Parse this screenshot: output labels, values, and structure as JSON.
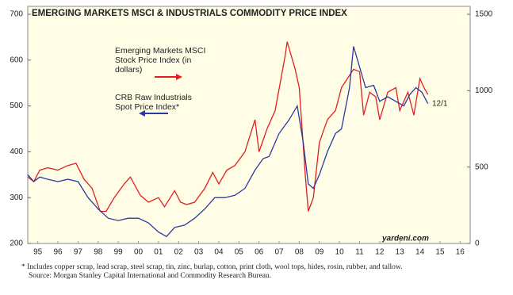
{
  "chart_data": {
    "type": "line",
    "title": "EMERGING MARKETS MSCI & INDUSTRIALS COMMODITY PRICE INDEX",
    "xlim": [
      1995,
      2017
    ],
    "xticks": [
      {
        "value": 1995.5,
        "label": "95"
      },
      {
        "value": 1996.5,
        "label": "96"
      },
      {
        "value": 1997.5,
        "label": "97"
      },
      {
        "value": 1998.5,
        "label": "98"
      },
      {
        "value": 1999.5,
        "label": "99"
      },
      {
        "value": 2000.5,
        "label": "00"
      },
      {
        "value": 2001.5,
        "label": "01"
      },
      {
        "value": 2002.5,
        "label": "02"
      },
      {
        "value": 2003.5,
        "label": "03"
      },
      {
        "value": 2004.5,
        "label": "04"
      },
      {
        "value": 2005.5,
        "label": "05"
      },
      {
        "value": 2006.5,
        "label": "06"
      },
      {
        "value": 2007.5,
        "label": "07"
      },
      {
        "value": 2008.5,
        "label": "08"
      },
      {
        "value": 2009.5,
        "label": "09"
      },
      {
        "value": 2010.5,
        "label": "10"
      },
      {
        "value": 2011.5,
        "label": "11"
      },
      {
        "value": 2012.5,
        "label": "12"
      },
      {
        "value": 2013.5,
        "label": "13"
      },
      {
        "value": 2014.5,
        "label": "14"
      },
      {
        "value": 2015.5,
        "label": "15"
      },
      {
        "value": 2016.5,
        "label": "16"
      }
    ],
    "ylim": [
      200,
      700
    ],
    "yticks": [
      200,
      300,
      400,
      500,
      600,
      700
    ],
    "y2lim": [
      0,
      1500
    ],
    "y2ticks": [
      0,
      500,
      1000,
      1500
    ],
    "series": [
      {
        "name": "Emerging Markets MSCI Stock Price Index (in dollars)",
        "color": "#e02020",
        "axis": "y2",
        "x": [
          1995.0,
          1995.3,
          1995.6,
          1996.0,
          1996.5,
          1997.0,
          1997.4,
          1997.8,
          1998.2,
          1998.6,
          1998.9,
          1999.3,
          1999.8,
          2000.1,
          2000.6,
          2001.0,
          2001.5,
          2001.8,
          2002.3,
          2002.6,
          2002.9,
          2003.3,
          2003.8,
          2004.2,
          2004.5,
          2004.9,
          2005.3,
          2005.8,
          2006.3,
          2006.5,
          2006.9,
          2007.3,
          2007.8,
          2007.9,
          2008.3,
          2008.5,
          2008.8,
          2008.95,
          2009.2,
          2009.5,
          2009.9,
          2010.3,
          2010.6,
          2010.9,
          2011.2,
          2011.5,
          2011.7,
          2012.0,
          2012.3,
          2012.5,
          2012.9,
          2013.3,
          2013.5,
          2013.9,
          2014.2,
          2014.5,
          2014.7,
          2014.9
        ],
        "values": [
          435,
          405,
          480,
          495,
          480,
          510,
          525,
          420,
          360,
          210,
          210,
          300,
          390,
          435,
          315,
          270,
          300,
          240,
          345,
          270,
          255,
          270,
          360,
          465,
          390,
          480,
          510,
          600,
          810,
          600,
          750,
          870,
          1230,
          1320,
          1140,
          1020,
          450,
          210,
          300,
          660,
          810,
          870,
          1020,
          1080,
          1140,
          1125,
          840,
          990,
          960,
          810,
          990,
          1020,
          870,
          990,
          840,
          1080,
          1020,
          975
        ]
      },
      {
        "name": "CRB Raw Industrials Spot Price Index*",
        "color": "#2a3aa0",
        "axis": "y",
        "x": [
          1995.0,
          1995.3,
          1995.6,
          1996.0,
          1996.5,
          1997.0,
          1997.5,
          1998.0,
          1998.5,
          1999.0,
          1999.5,
          2000.0,
          2000.5,
          2001.0,
          2001.5,
          2001.9,
          2002.3,
          2002.8,
          2003.3,
          2003.8,
          2004.3,
          2004.8,
          2005.3,
          2005.8,
          2006.3,
          2006.7,
          2007.0,
          2007.5,
          2008.0,
          2008.4,
          2008.7,
          2008.95,
          2009.2,
          2009.5,
          2009.9,
          2010.3,
          2010.6,
          2011.0,
          2011.2,
          2011.4,
          2011.8,
          2012.2,
          2012.5,
          2012.9,
          2013.3,
          2013.7,
          2014.0,
          2014.3,
          2014.6,
          2014.9
        ],
        "values": [
          350,
          335,
          345,
          340,
          335,
          340,
          335,
          300,
          275,
          255,
          250,
          255,
          255,
          245,
          225,
          215,
          235,
          240,
          255,
          275,
          300,
          300,
          305,
          320,
          360,
          385,
          390,
          440,
          470,
          500,
          420,
          330,
          320,
          350,
          400,
          440,
          450,
          540,
          630,
          600,
          540,
          545,
          510,
          520,
          510,
          500,
          525,
          540,
          530,
          505
        ]
      }
    ],
    "annotations": [
      "12/1",
      "yardeni.com"
    ],
    "footnotes": [
      "*  Includes copper scrap, lead scrap, steel scrap, tin, zinc, burlap, cotton, print cloth, wool tops, hides, rosin, rubber, and tallow.",
      "Source: Morgan Stanley Capital International and Commodity Research Bureau."
    ]
  }
}
